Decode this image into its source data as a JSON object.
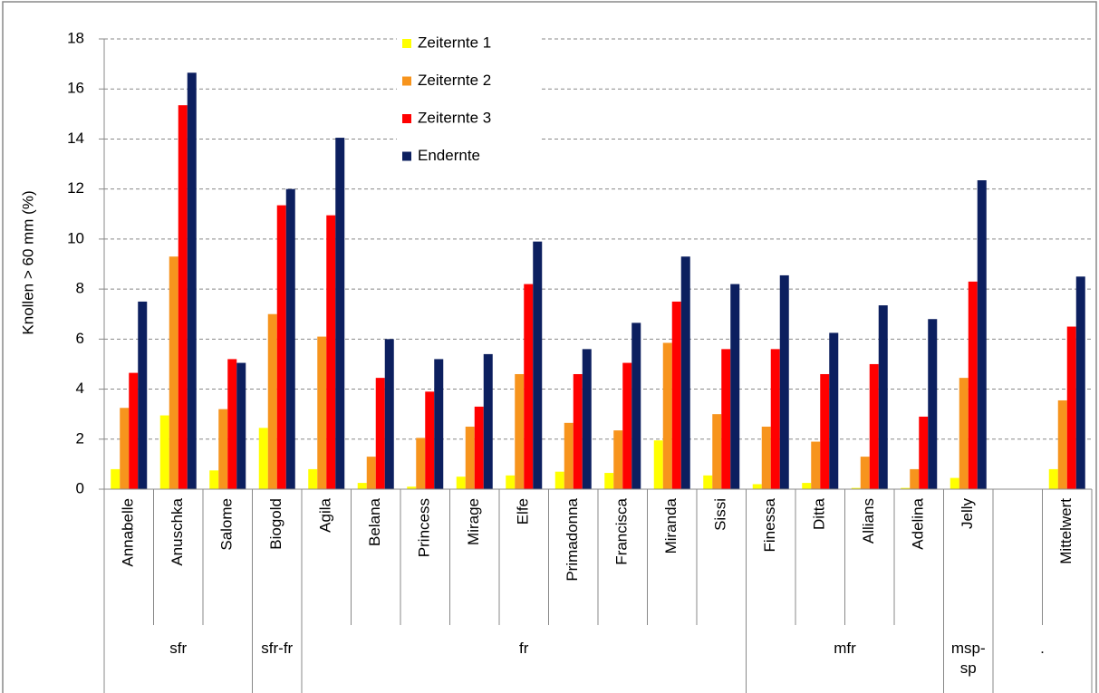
{
  "chart_data": {
    "type": "bar",
    "ylabel": "Knollen > 60 mm (%)",
    "categories": [
      "Annabelle",
      "Anuschka",
      "Salome",
      "Biogold",
      "Agila",
      "Belana",
      "Princess",
      "Mirage",
      "Elfe",
      "Primadonna",
      "Francisca",
      "Miranda",
      "Sissi",
      "Finessa",
      "Ditta",
      "Allians",
      "Adelina",
      "Jelly",
      null,
      "Mittelwert"
    ],
    "groups": [
      {
        "name": "sfr",
        "size": 3
      },
      {
        "name": "sfr-fr",
        "size": 1
      },
      {
        "name": "fr",
        "size": 9
      },
      {
        "name": "mfr",
        "size": 4
      },
      {
        "name": "msp-sp",
        "size": 1
      },
      {
        "name": ".",
        "size": 2
      }
    ],
    "series": [
      {
        "name": "Zeiternte 1",
        "color": "#ffff00",
        "values": [
          0.8,
          2.95,
          0.75,
          2.45,
          0.8,
          0.25,
          0.1,
          0.5,
          0.55,
          0.7,
          0.65,
          1.95,
          0.55,
          0.2,
          0.25,
          0.05,
          0.05,
          0.45,
          null,
          0.8
        ]
      },
      {
        "name": "Zeiternte 2",
        "color": "#f7941d",
        "values": [
          3.25,
          9.3,
          3.2,
          7.0,
          6.1,
          1.3,
          2.05,
          2.5,
          4.6,
          2.65,
          2.35,
          5.85,
          3.0,
          2.5,
          1.9,
          1.3,
          0.8,
          4.45,
          null,
          3.55
        ]
      },
      {
        "name": "Zeiternte 3",
        "color": "#ff0000",
        "values": [
          4.65,
          15.35,
          5.2,
          11.35,
          10.95,
          4.45,
          3.9,
          3.3,
          8.2,
          4.6,
          5.05,
          7.5,
          5.6,
          5.6,
          4.6,
          5.0,
          2.9,
          8.3,
          null,
          6.5
        ]
      },
      {
        "name": "Endernte",
        "color": "#0c1f5f",
        "values": [
          7.5,
          16.65,
          5.05,
          12.0,
          14.05,
          6.0,
          5.2,
          5.4,
          9.9,
          5.6,
          6.65,
          9.3,
          8.2,
          8.55,
          6.25,
          7.35,
          6.8,
          12.35,
          null,
          8.5
        ]
      }
    ],
    "ylim": [
      0,
      18
    ],
    "yticks": [
      0,
      2,
      4,
      6,
      8,
      10,
      12,
      14,
      16,
      18
    ],
    "grid": true,
    "legend": "top"
  }
}
